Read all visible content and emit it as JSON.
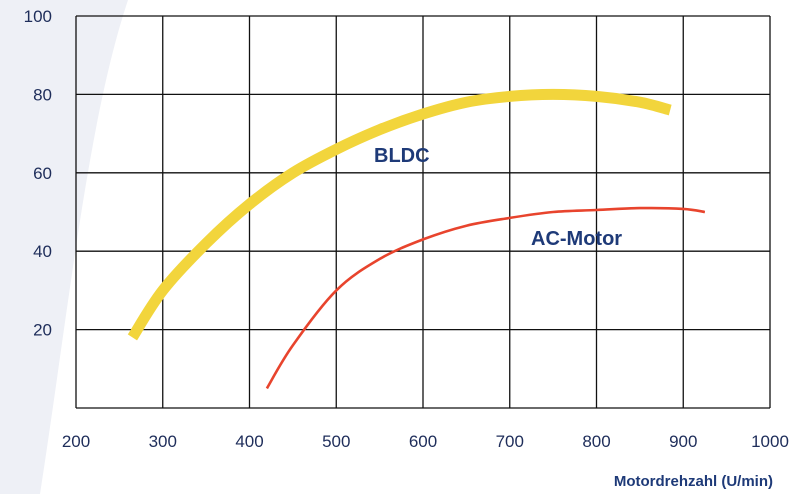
{
  "colors": {
    "background_swoosh": "#eef0f6",
    "grid": "#111111",
    "tick_text": "#1e2d5a",
    "label_text": "#1e3a78",
    "bldc": "#f2d53c",
    "ac_motor": "#e8442d"
  },
  "chart_data": {
    "type": "line",
    "title": "",
    "xlabel": "Motordrehzahl (U/min)",
    "ylabel": "",
    "xlim": [
      200,
      1000
    ],
    "ylim": [
      0,
      100
    ],
    "x_ticks": [
      200,
      300,
      400,
      500,
      600,
      700,
      800,
      900,
      1000
    ],
    "y_ticks": [
      20,
      40,
      60,
      80,
      100
    ],
    "grid": true,
    "legend": "none",
    "series": [
      {
        "name": "BLDC",
        "color": "#f2d53c",
        "x": [
          265,
          300,
          350,
          400,
          450,
          500,
          550,
          600,
          650,
          700,
          750,
          800,
          850,
          885
        ],
        "y": [
          18,
          30,
          42,
          52,
          60,
          66,
          71,
          75,
          78,
          79.5,
          80,
          79.5,
          78,
          76
        ]
      },
      {
        "name": "AC-Motor",
        "color": "#e8442d",
        "x": [
          420,
          450,
          500,
          550,
          600,
          650,
          700,
          750,
          800,
          850,
          900,
          925
        ],
        "y": [
          5,
          16,
          30,
          38,
          43,
          46.5,
          48.5,
          50,
          50.5,
          51,
          50.8,
          50
        ]
      }
    ]
  }
}
